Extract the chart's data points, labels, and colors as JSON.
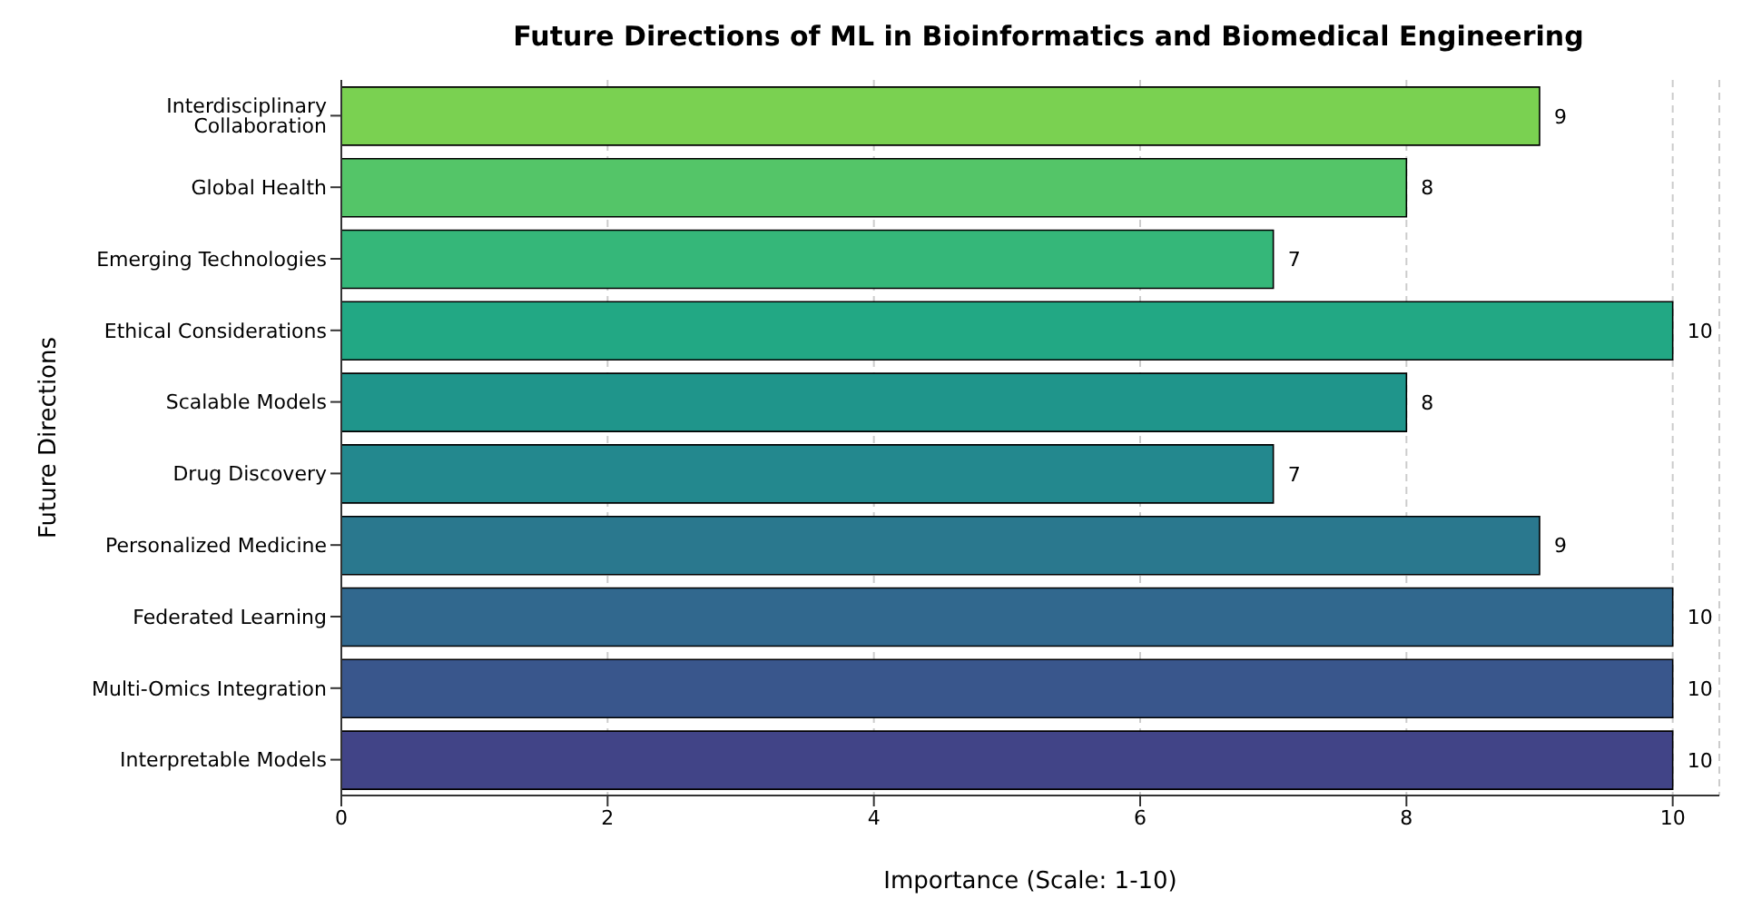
{
  "chart_data": {
    "type": "bar",
    "orientation": "horizontal",
    "title": "Future Directions of ML in Bioinformatics and Biomedical Engineering",
    "xlabel": "Importance (Scale: 1-10)",
    "ylabel": "Future Directions",
    "categories": [
      "Interdisciplinary Collaboration",
      "Global Health",
      "Emerging Technologies",
      "Ethical Considerations",
      "Scalable Models",
      "Drug Discovery",
      "Personalized Medicine",
      "Federated Learning",
      "Multi-Omics Integration",
      "Interpretable Models"
    ],
    "values": [
      9,
      8,
      7,
      10,
      8,
      7,
      9,
      10,
      10,
      10
    ],
    "colors": [
      "#7ad151",
      "#54c568",
      "#35b779",
      "#22a884",
      "#1f958b",
      "#23888e",
      "#2a788e",
      "#31688e",
      "#39568c",
      "#414487"
    ],
    "xlim": [
      0,
      10.35
    ],
    "xticks": [
      0,
      2,
      4,
      6,
      8,
      10
    ],
    "grid": "x",
    "data_labels": true
  }
}
